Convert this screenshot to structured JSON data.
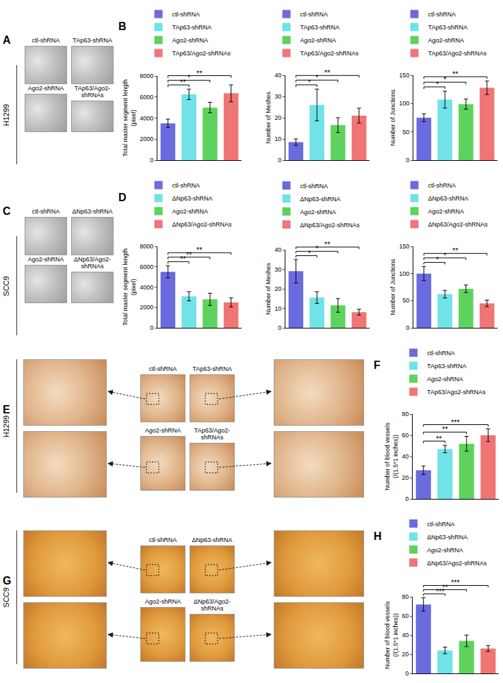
{
  "image_panels": [
    {
      "label": "A",
      "type": "image_grid",
      "cell_line": "H1299",
      "images": [
        "ctl-shRNA",
        "TAp63-shRNA",
        "Ago2-shRNA",
        "TAp63/Ago2-shRNAs"
      ]
    },
    {
      "label": "C",
      "type": "image_grid",
      "cell_line": "SCC9",
      "images": [
        "ctl-shRNA",
        "ΔNp63-shRNA",
        "Ago2-shRNA",
        "ΔNp63/Ago2-shRNAs"
      ]
    },
    {
      "label": "E",
      "type": "image_zoom",
      "cell_line": "H1299",
      "images": [
        "ctl-shRNA",
        "TAp63-shRNA",
        "Ago2-shRNA",
        "TAp63/Ago2-shRNAs"
      ]
    },
    {
      "label": "G",
      "type": "image_zoom",
      "cell_line": "SCC9",
      "images": [
        "ctl-shRNA",
        "ΔNp63-shRNA",
        "Ago2-shRNA",
        "ΔNp63/Ago2-shRNAs"
      ]
    }
  ],
  "chart_data": [
    {
      "panel": "B",
      "type": "bar",
      "y_label": "Total master segment length (pixel)",
      "categories": [
        "ctl-shRNA",
        "TAp63-shRNA",
        "Ago2-shRNA",
        "TAp63/Ago2-shRNAs"
      ],
      "values": [
        3500,
        6250,
        5000,
        6350
      ],
      "errors": [
        400,
        500,
        500,
        800
      ],
      "colors": [
        "#6b6bdf",
        "#6fe3e8",
        "#5dd35d",
        "#f07575"
      ],
      "ylim": [
        0,
        8000
      ],
      "yticks": [
        0,
        2000,
        4000,
        6000,
        8000
      ],
      "tick_labels": "y",
      "legend": "top",
      "significance": [
        {
          "from": 0,
          "to": 1,
          "label": "**"
        },
        {
          "from": 0,
          "to": 2,
          "label": "*"
        },
        {
          "from": 0,
          "to": 3,
          "label": "**"
        }
      ]
    },
    {
      "panel": "B",
      "type": "bar",
      "y_label": "Number of Meshes",
      "categories": [
        "ctl-shRNA",
        "TAp63-shRNA",
        "Ago2-shRNA",
        "TAp63/Ago2-shRNAs"
      ],
      "values": [
        8.5,
        26,
        16.5,
        21
      ],
      "errors": [
        1.5,
        7.5,
        3.5,
        3.5
      ],
      "colors": [
        "#6b6bdf",
        "#6fe3e8",
        "#5dd35d",
        "#f07575"
      ],
      "ylim": [
        0,
        40
      ],
      "yticks": [
        0,
        10,
        20,
        30,
        40
      ],
      "tick_labels": "y",
      "legend": "top",
      "significance": [
        {
          "from": 0,
          "to": 1,
          "label": "*"
        },
        {
          "from": 0,
          "to": 2,
          "label": "*"
        },
        {
          "from": 0,
          "to": 3,
          "label": "**"
        }
      ]
    },
    {
      "panel": "B",
      "type": "bar",
      "y_label": "Number of Junctions",
      "categories": [
        "ctl-shRNA",
        "TAp63-shRNA",
        "Ago2-shRNA",
        "TAp63/Ago2-shRNAs"
      ],
      "values": [
        75,
        107,
        99,
        128
      ],
      "errors": [
        7,
        15,
        9,
        12
      ],
      "colors": [
        "#6b6bdf",
        "#6fe3e8",
        "#5dd35d",
        "#f07575"
      ],
      "ylim": [
        0,
        150
      ],
      "yticks": [
        0,
        50,
        100,
        150
      ],
      "tick_labels": "y",
      "legend": "top",
      "significance": [
        {
          "from": 0,
          "to": 1,
          "label": "*"
        },
        {
          "from": 0,
          "to": 2,
          "label": "*"
        },
        {
          "from": 0,
          "to": 3,
          "label": "**"
        }
      ]
    },
    {
      "panel": "D",
      "type": "bar",
      "y_label": "Total master segment length (pixel)",
      "categories": [
        "ctl-shRNA",
        "ΔNp63-shRNA",
        "Ago2-shRNA",
        "ΔNp63/Ago2-shRNAs"
      ],
      "values": [
        5500,
        3100,
        2800,
        2500
      ],
      "errors": [
        600,
        450,
        600,
        450
      ],
      "colors": [
        "#6b6bdf",
        "#6fe3e8",
        "#5dd35d",
        "#f07575"
      ],
      "ylim": [
        0,
        8000
      ],
      "yticks": [
        0,
        2000,
        4000,
        6000,
        8000
      ],
      "tick_labels": "y",
      "legend": "top",
      "significance": [
        {
          "from": 0,
          "to": 1,
          "label": "**"
        },
        {
          "from": 0,
          "to": 2,
          "label": "**"
        },
        {
          "from": 0,
          "to": 3,
          "label": "**"
        }
      ]
    },
    {
      "panel": "D",
      "type": "bar",
      "y_label": "Number of Meshes",
      "categories": [
        "ctl-shRNA",
        "ΔNp63-shRNA",
        "Ago2-shRNA",
        "ΔNp63/Ago2-shRNAs"
      ],
      "values": [
        29,
        15.5,
        11.5,
        8
      ],
      "errors": [
        6,
        3,
        3.5,
        1.5
      ],
      "colors": [
        "#6b6bdf",
        "#6fe3e8",
        "#5dd35d",
        "#f07575"
      ],
      "ylim": [
        0,
        40
      ],
      "yticks": [
        0,
        10,
        20,
        30,
        40
      ],
      "tick_labels": "y",
      "legend": "top",
      "significance": [
        {
          "from": 0,
          "to": 1,
          "label": "*"
        },
        {
          "from": 0,
          "to": 2,
          "label": "*"
        },
        {
          "from": 0,
          "to": 3,
          "label": "**"
        }
      ]
    },
    {
      "panel": "D",
      "type": "bar",
      "y_label": "Number of Junctions",
      "categories": [
        "ctl-shRNA",
        "ΔNp63-shRNA",
        "Ago2-shRNA",
        "ΔNp63/Ago2-shRNAs"
      ],
      "values": [
        100,
        62,
        72,
        45
      ],
      "errors": [
        13,
        7,
        7,
        6
      ],
      "colors": [
        "#6b6bdf",
        "#6fe3e8",
        "#5dd35d",
        "#f07575"
      ],
      "ylim": [
        0,
        150
      ],
      "yticks": [
        0,
        50,
        100,
        150
      ],
      "tick_labels": "y",
      "legend": "top",
      "significance": [
        {
          "from": 0,
          "to": 1,
          "label": "*"
        },
        {
          "from": 0,
          "to": 2,
          "label": "*"
        },
        {
          "from": 0,
          "to": 3,
          "label": "**"
        }
      ]
    },
    {
      "panel": "F",
      "type": "bar",
      "y_label": "Number of blood vessels (/(1.5*1 inches))",
      "categories": [
        "ctl-shRNA",
        "TAp63-shRNA",
        "Ago2-shRNA",
        "TAp63/Ago2-shRNAs"
      ],
      "values": [
        27,
        47,
        52,
        60
      ],
      "errors": [
        4,
        3.5,
        7,
        6
      ],
      "colors": [
        "#6b6bdf",
        "#6fe3e8",
        "#5dd35d",
        "#f07575"
      ],
      "ylim": [
        0,
        80
      ],
      "yticks": [
        0,
        20,
        40,
        60,
        80
      ],
      "tick_labels": "y",
      "legend": "top",
      "significance": [
        {
          "from": 0,
          "to": 1,
          "label": "**"
        },
        {
          "from": 0,
          "to": 2,
          "label": "**"
        },
        {
          "from": 0,
          "to": 3,
          "label": "***"
        }
      ]
    },
    {
      "panel": "H",
      "type": "bar",
      "y_label": "Number of blood vessels (/(1.5*1 inches))",
      "categories": [
        "ctl-shRNA",
        "ΔNp63-shRNA",
        "Ago2-shRNA",
        "ΔNp63/Ago2-shRNAs"
      ],
      "values": [
        72,
        24,
        34,
        26
      ],
      "errors": [
        7,
        3.5,
        6,
        3
      ],
      "colors": [
        "#6b6bdf",
        "#6fe3e8",
        "#5dd35d",
        "#f07575"
      ],
      "ylim": [
        0,
        80
      ],
      "yticks": [
        0,
        20,
        40,
        60,
        80
      ],
      "tick_labels": "y",
      "legend": "top",
      "significance": [
        {
          "from": 0,
          "to": 1,
          "label": "***"
        },
        {
          "from": 0,
          "to": 2,
          "label": "**"
        },
        {
          "from": 0,
          "to": 3,
          "label": "***"
        }
      ]
    }
  ]
}
